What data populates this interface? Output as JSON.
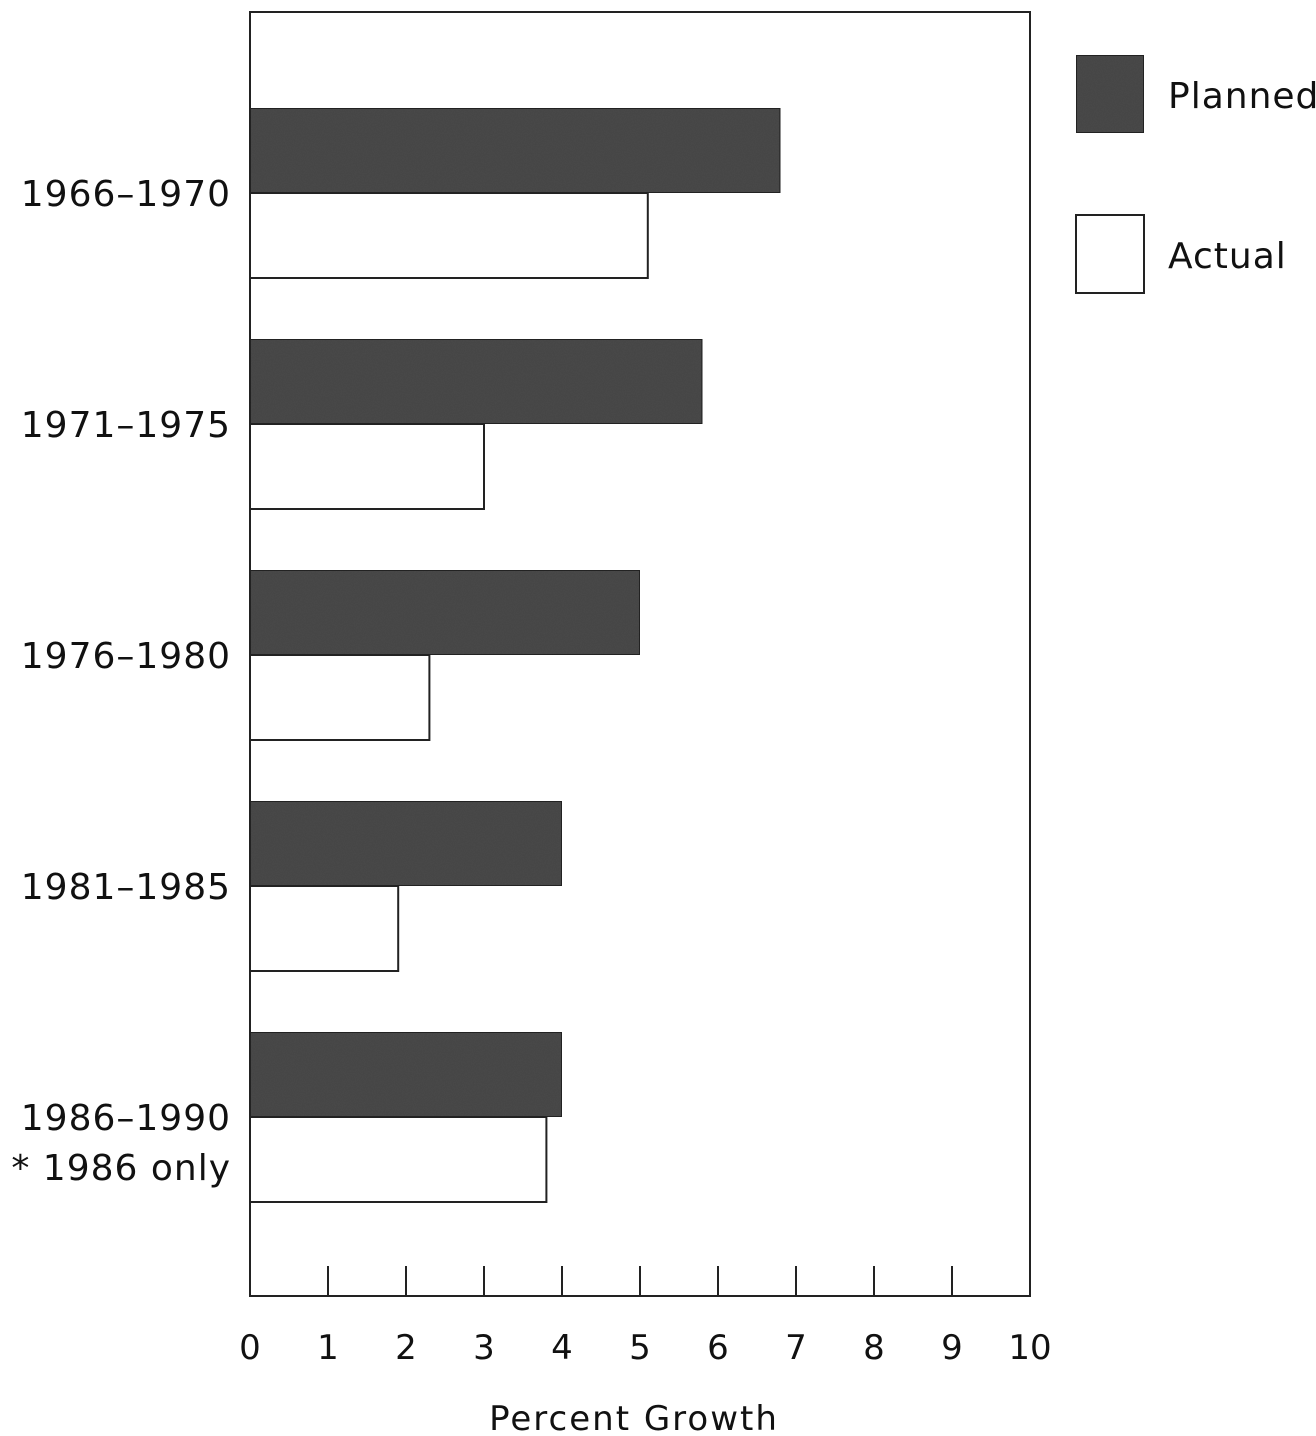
{
  "chart_data": {
    "type": "bar",
    "orientation": "horizontal",
    "categories": [
      "1966–1970",
      "1971–1975",
      "1976–1980",
      "1981–1985",
      "1986–1990"
    ],
    "category_note": "* 1986 only",
    "series": [
      {
        "name": "Planned",
        "values": [
          6.8,
          5.8,
          5.0,
          4.0,
          4.0
        ],
        "color": "#4a4a4a"
      },
      {
        "name": "Actual",
        "values": [
          5.1,
          3.0,
          2.3,
          1.9,
          3.8
        ],
        "color": "#ffffff"
      }
    ],
    "xlabel": "Percent Growth",
    "ylabel": "",
    "xlim": [
      0,
      10
    ],
    "xticks": [
      "0",
      "1",
      "2",
      "3",
      "4",
      "5",
      "6",
      "7",
      "8",
      "9",
      "10"
    ],
    "grid": false,
    "legend": "top-right"
  }
}
